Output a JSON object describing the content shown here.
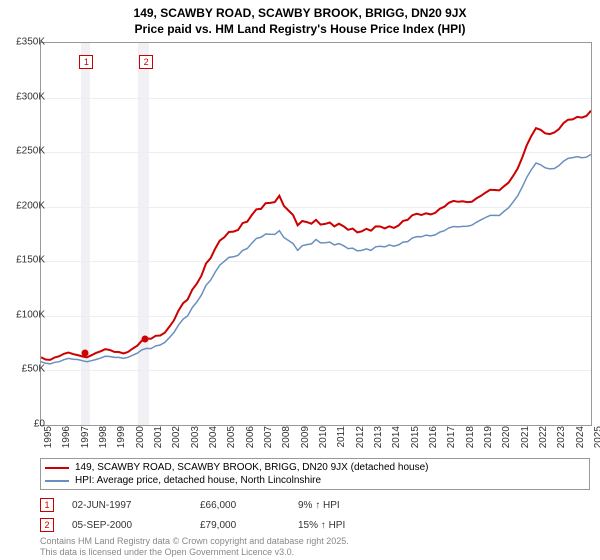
{
  "title_line1": "149, SCAWBY ROAD, SCAWBY BROOK, BRIGG, DN20 9JX",
  "title_line2": "Price paid vs. HM Land Registry's House Price Index (HPI)",
  "chart": {
    "type": "line",
    "background_color": "#ffffff",
    "grid_color": "#eeeeee",
    "border_color": "#999999",
    "x_years": [
      "1995",
      "1996",
      "1997",
      "1998",
      "1999",
      "2000",
      "2001",
      "2002",
      "2003",
      "2004",
      "2005",
      "2006",
      "2007",
      "2008",
      "2009",
      "2010",
      "2011",
      "2012",
      "2013",
      "2014",
      "2015",
      "2016",
      "2017",
      "2018",
      "2019",
      "2020",
      "2021",
      "2022",
      "2023",
      "2024",
      "2025"
    ],
    "ylim": [
      0,
      350000
    ],
    "ytick_step": 50000,
    "yticks": [
      "£0",
      "£50K",
      "£100K",
      "£150K",
      "£200K",
      "£250K",
      "£300K",
      "£350K"
    ],
    "shaded_ranges": [
      {
        "start": 1997.2,
        "end": 1997.7
      },
      {
        "start": 2000.3,
        "end": 2000.9
      }
    ],
    "series": [
      {
        "name": "price_paid",
        "label": "149, SCAWBY ROAD, SCAWBY BROOK, BRIGG, DN20 9JX (detached house)",
        "color": "#cc0000",
        "line_width": 2,
        "values": [
          62000,
          63000,
          64000,
          66000,
          67000,
          70000,
          79000,
          90000,
          115000,
          148000,
          172000,
          185000,
          198000,
          210000,
          183000,
          188000,
          182000,
          180000,
          178000,
          182000,
          188000,
          194000,
          200000,
          205000,
          210000,
          215000,
          235000,
          272000,
          268000,
          280000,
          288000
        ]
      },
      {
        "name": "hpi",
        "label": "HPI: Average price, detached house, North Lincolnshire",
        "color": "#6a8fbf",
        "line_width": 1.5,
        "values": [
          58000,
          58000,
          60000,
          60000,
          62000,
          64000,
          70000,
          80000,
          100000,
          128000,
          150000,
          160000,
          172000,
          178000,
          160000,
          170000,
          165000,
          162000,
          160000,
          165000,
          168000,
          174000,
          178000,
          182000,
          188000,
          192000,
          210000,
          240000,
          235000,
          245000,
          248000
        ]
      }
    ],
    "markers": [
      {
        "num": "1",
        "year": 1997.42,
        "value": 66000
      },
      {
        "num": "2",
        "year": 2000.68,
        "value": 79000
      }
    ]
  },
  "legend": {
    "items": [
      {
        "color": "#cc0000",
        "label": "149, SCAWBY ROAD, SCAWBY BROOK, BRIGG, DN20 9JX (detached house)"
      },
      {
        "color": "#6a8fbf",
        "label": "HPI: Average price, detached house, North Lincolnshire"
      }
    ]
  },
  "annotations": [
    {
      "num": "1",
      "date": "02-JUN-1997",
      "price": "£66,000",
      "pct": "9% ↑ HPI"
    },
    {
      "num": "2",
      "date": "05-SEP-2000",
      "price": "£79,000",
      "pct": "15% ↑ HPI"
    }
  ],
  "footer_line1": "Contains HM Land Registry data © Crown copyright and database right 2025.",
  "footer_line2": "This data is licensed under the Open Government Licence v3.0."
}
